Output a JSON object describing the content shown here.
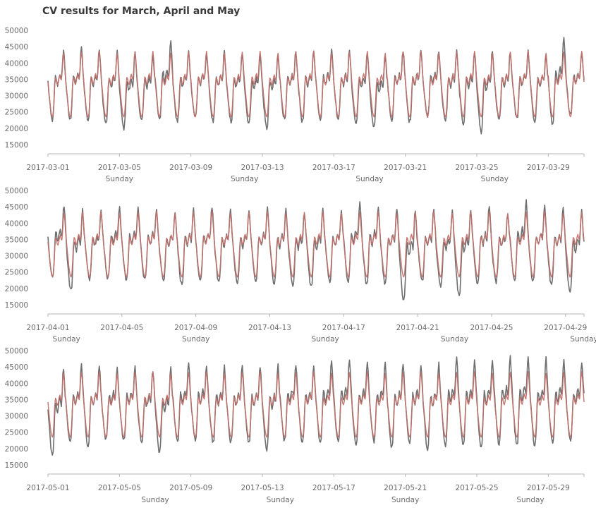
{
  "title": "CV results for March, April and May",
  "colors": {
    "actual": "#6f6f6f",
    "predicted": "#c2706a",
    "axis": "#b5b5b5",
    "text": "#6a6a6a"
  },
  "chart_data": [
    {
      "type": "line",
      "month": "March",
      "xlim": [
        "2017-03-01",
        "2017-03-31"
      ],
      "ylim": [
        15000,
        50000
      ],
      "yticks": [
        15000,
        20000,
        25000,
        30000,
        35000,
        40000,
        45000,
        50000
      ],
      "xtick_labels": [
        "2017-03-01",
        "2017-03-05",
        "2017-03-09",
        "2017-03-13",
        "2017-03-17",
        "2017-03-21",
        "2017-03-25",
        "2017-03-29"
      ],
      "sunday_dates": [
        "2017-03-05",
        "2017-03-12",
        "2017-03-19",
        "2017-03-26"
      ],
      "sunday_label": "Sunday",
      "daily_peak": [
        44000,
        44500,
        44000,
        43500,
        43000,
        42500,
        46500,
        43500,
        43000,
        43500,
        43000,
        42500,
        43000,
        43500,
        44000,
        44000,
        43500,
        43000,
        42500,
        44000,
        44500,
        44000,
        43500,
        43500,
        44000,
        43000,
        43500,
        43000,
        47500,
        43500,
        43500
      ],
      "daily_min": [
        22500,
        22500,
        22500,
        21500,
        20000,
        22500,
        22500,
        22000,
        23500,
        22000,
        22000,
        21500,
        20000,
        22500,
        22000,
        23000,
        23000,
        21500,
        20000,
        22500,
        22000,
        23500,
        22000,
        21500,
        19000,
        22500,
        23000,
        22000,
        21000,
        24500,
        24000
      ],
      "series": [
        {
          "role": "actual",
          "type": "line"
        },
        {
          "role": "predicted",
          "type": "line"
        }
      ]
    },
    {
      "type": "line",
      "month": "April",
      "xlim": [
        "2017-04-01",
        "2017-04-30"
      ],
      "ylim": [
        15000,
        50000
      ],
      "yticks": [
        15000,
        20000,
        25000,
        30000,
        35000,
        40000,
        45000,
        50000
      ],
      "xtick_labels": [
        "2017-04-01",
        "2017-04-05",
        "2017-04-09",
        "2017-04-13",
        "2017-04-17",
        "2017-04-21",
        "2017-04-25",
        "2017-04-29"
      ],
      "sunday_dates": [
        "2017-04-02",
        "2017-04-09",
        "2017-04-16",
        "2017-04-23",
        "2017-04-30"
      ],
      "sunday_label": "Sunday",
      "daily_peak": [
        45500,
        44000,
        43500,
        45000,
        45000,
        44500,
        43500,
        44500,
        45000,
        44000,
        44000,
        44500,
        44000,
        43500,
        44000,
        44000,
        46000,
        45500,
        44500,
        44000,
        44000,
        43500,
        44500,
        45000,
        43000,
        46500,
        45000,
        44500,
        44000,
        43500
      ],
      "daily_min": [
        23500,
        19500,
        23000,
        23000,
        22500,
        22500,
        22500,
        21000,
        22000,
        22000,
        21500,
        22000,
        21500,
        21000,
        20500,
        22000,
        22000,
        21500,
        21500,
        16500,
        22000,
        20500,
        18000,
        21500,
        22000,
        22500,
        22000,
        21000,
        18500,
        22000
      ],
      "series": [
        {
          "role": "actual",
          "type": "line"
        },
        {
          "role": "predicted",
          "type": "line"
        }
      ]
    },
    {
      "type": "line",
      "month": "May",
      "xlim": [
        "2017-05-01",
        "2017-05-31"
      ],
      "ylim": [
        15000,
        50000
      ],
      "yticks": [
        15000,
        20000,
        25000,
        30000,
        35000,
        40000,
        45000,
        50000
      ],
      "xtick_labels": [
        "2017-05-01",
        "2017-05-05",
        "2017-05-09",
        "2017-05-13",
        "2017-05-17",
        "2017-05-21",
        "2017-05-25",
        "2017-05-29"
      ],
      "sunday_dates": [
        "2017-05-07",
        "2017-05-14",
        "2017-05-21",
        "2017-05-28"
      ],
      "sunday_label": "Sunday",
      "daily_peak": [
        44500,
        45500,
        45500,
        44500,
        45000,
        44000,
        44500,
        46000,
        45500,
        45000,
        45000,
        45000,
        45500,
        46000,
        45500,
        46500,
        47000,
        46500,
        46000,
        46000,
        45500,
        46000,
        47500,
        47000,
        47500,
        48000,
        48000,
        47500,
        47000,
        46500,
        46500
      ],
      "daily_min": [
        18000,
        21500,
        21000,
        23000,
        22500,
        22000,
        19000,
        22000,
        22500,
        22000,
        22000,
        21500,
        19500,
        22500,
        22000,
        22000,
        22000,
        21000,
        22000,
        20500,
        22000,
        20000,
        21000,
        21000,
        20500,
        21500,
        21000,
        21000,
        21500,
        22000,
        25000
      ],
      "series": [
        {
          "role": "actual",
          "type": "line"
        },
        {
          "role": "predicted",
          "type": "line"
        }
      ]
    }
  ]
}
